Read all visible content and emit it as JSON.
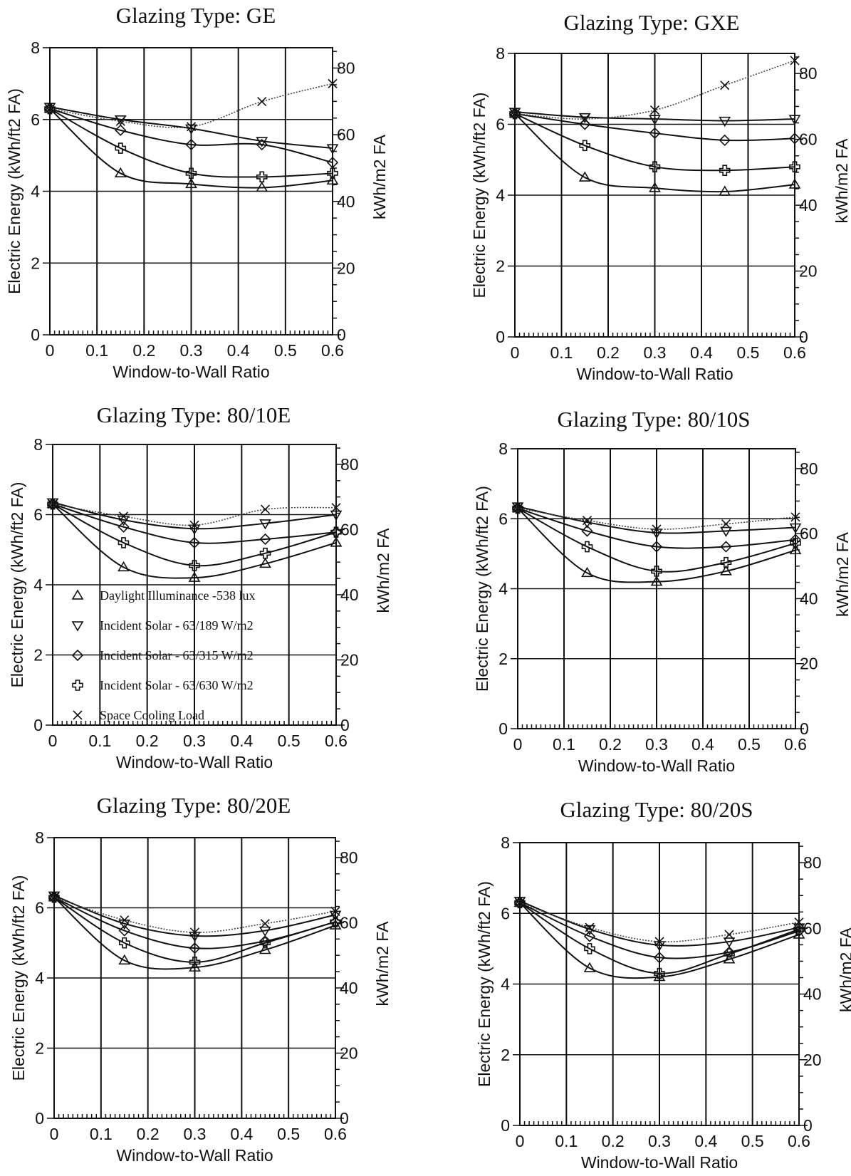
{
  "chart_data": [
    {
      "type": "line",
      "title": "Glazing Type:  GE",
      "xlabel": "Window-to-Wall Ratio",
      "ylabel": "Electric Energy (kWh/ft2 FA)",
      "y2label": "kWh/m2 FA",
      "xlim": [
        0,
        0.6
      ],
      "ylim": [
        0,
        8
      ],
      "y2lim": [
        0,
        86.1
      ],
      "x_ticks": [
        "0",
        "0.1",
        "0.2",
        "0.3",
        "0.4",
        "0.5",
        "0.6"
      ],
      "y_ticks": [
        "0",
        "2",
        "4",
        "6",
        "8"
      ],
      "y2_ticks": [
        "0",
        "20",
        "40",
        "60",
        "80"
      ],
      "grid": true,
      "x": [
        0,
        0.15,
        0.3,
        0.45,
        0.6
      ],
      "series": [
        {
          "name": "Daylight Illuminance -538 lux",
          "marker": "triangle-up",
          "values": [
            6.3,
            4.5,
            4.2,
            4.1,
            4.3
          ]
        },
        {
          "name": "Incident  Solar - 63/189 W/m2",
          "marker": "triangle-down",
          "values": [
            6.35,
            6.0,
            5.75,
            5.4,
            5.2
          ]
        },
        {
          "name": "Incident  Solar -  63/315 W/m2",
          "marker": "diamond",
          "values": [
            6.3,
            5.7,
            5.3,
            5.3,
            4.8
          ]
        },
        {
          "name": "Incident  Solar - 63/630 W/m2",
          "marker": "cross",
          "values": [
            6.3,
            5.2,
            4.5,
            4.4,
            4.5
          ]
        },
        {
          "name": "Space Cooling Load",
          "marker": "x",
          "values": [
            6.3,
            5.95,
            5.8,
            6.5,
            7.0
          ]
        }
      ]
    },
    {
      "type": "line",
      "title": "Glazing Type:  GXE",
      "xlabel": "Window-to-Wall Ratio",
      "ylabel": "Electric Energy (kWh/ft2 FA)",
      "y2label": "kWh/m2 FA",
      "xlim": [
        0,
        0.6
      ],
      "ylim": [
        0,
        8
      ],
      "y2lim": [
        0,
        86.1
      ],
      "x_ticks": [
        "0",
        "0.1",
        "0.2",
        "0.3",
        "0.4",
        "0.5",
        "0.6"
      ],
      "y_ticks": [
        "0",
        "2",
        "4",
        "6",
        "8"
      ],
      "y2_ticks": [
        "0",
        "20",
        "40",
        "60",
        "80"
      ],
      "grid": true,
      "x": [
        0,
        0.15,
        0.3,
        0.45,
        0.6
      ],
      "series": [
        {
          "name": "Daylight Illuminance -538 lux",
          "marker": "triangle-up",
          "values": [
            6.3,
            4.5,
            4.2,
            4.1,
            4.3
          ]
        },
        {
          "name": "Incident  Solar - 63/189 W/m2",
          "marker": "triangle-down",
          "values": [
            6.35,
            6.2,
            6.15,
            6.1,
            6.15
          ]
        },
        {
          "name": "Incident  Solar -  63/315 W/m2",
          "marker": "diamond",
          "values": [
            6.3,
            6.0,
            5.75,
            5.55,
            5.6
          ]
        },
        {
          "name": "Incident  Solar - 63/630 W/m2",
          "marker": "cross",
          "values": [
            6.3,
            5.4,
            4.8,
            4.7,
            4.8
          ]
        },
        {
          "name": "Space Cooling Load",
          "marker": "x",
          "values": [
            6.3,
            6.15,
            6.4,
            7.1,
            7.8
          ]
        }
      ]
    },
    {
      "type": "line",
      "title": "Glazing Type:  80/10E",
      "xlabel": "Window-to-Wall Ratio",
      "ylabel": "Electric Energy (kWh/ft2 FA)",
      "y2label": "kWh/m2 FA",
      "xlim": [
        0,
        0.6
      ],
      "ylim": [
        0,
        8
      ],
      "y2lim": [
        0,
        86.1
      ],
      "x_ticks": [
        "0",
        "0.1",
        "0.2",
        "0.3",
        "0.4",
        "0.5",
        "0.6"
      ],
      "y_ticks": [
        "0",
        "2",
        "4",
        "6",
        "8"
      ],
      "y2_ticks": [
        "0",
        "20",
        "40",
        "60",
        "80"
      ],
      "grid": true,
      "legend_position": "lower-left",
      "x": [
        0,
        0.15,
        0.3,
        0.45,
        0.6
      ],
      "series": [
        {
          "name": "Daylight Illuminance -538 lux",
          "marker": "triangle-up",
          "values": [
            6.3,
            4.5,
            4.2,
            4.6,
            5.2
          ]
        },
        {
          "name": "Incident  Solar - 63/189 W/m2",
          "marker": "triangle-down",
          "values": [
            6.35,
            5.85,
            5.6,
            5.75,
            6.0
          ]
        },
        {
          "name": "Incident  Solar -  63/315 W/m2",
          "marker": "diamond",
          "values": [
            6.3,
            5.65,
            5.2,
            5.3,
            5.5
          ]
        },
        {
          "name": "Incident  Solar - 63/630 W/m2",
          "marker": "cross",
          "values": [
            6.3,
            5.2,
            4.55,
            4.9,
            5.5
          ]
        },
        {
          "name": "Space Cooling Load",
          "marker": "x",
          "values": [
            6.3,
            5.95,
            5.7,
            6.15,
            6.2
          ]
        }
      ]
    },
    {
      "type": "line",
      "title": "Glazing Type:  80/10S",
      "xlabel": "Window-to-Wall Ratio",
      "ylabel": "Electric Energy (kWh/ft2 FA)",
      "y2label": "kWh/m2 FA",
      "xlim": [
        0,
        0.6
      ],
      "ylim": [
        0,
        8
      ],
      "y2lim": [
        0,
        86.1
      ],
      "x_ticks": [
        "0",
        "0.1",
        "0.2",
        "0.3",
        "0.4",
        "0.5",
        "0.6"
      ],
      "y_ticks": [
        "0",
        "2",
        "4",
        "6",
        "8"
      ],
      "y2_ticks": [
        "0",
        "20",
        "40",
        "60",
        "80"
      ],
      "grid": true,
      "x": [
        0,
        0.15,
        0.3,
        0.45,
        0.6
      ],
      "series": [
        {
          "name": "Daylight Illuminance -538 lux",
          "marker": "triangle-up",
          "values": [
            6.3,
            4.45,
            4.2,
            4.5,
            5.1
          ]
        },
        {
          "name": "Incident  Solar - 63/189 W/m2",
          "marker": "triangle-down",
          "values": [
            6.35,
            5.9,
            5.6,
            5.65,
            5.75
          ]
        },
        {
          "name": "Incident  Solar -  63/315 W/m2",
          "marker": "diamond",
          "values": [
            6.3,
            5.65,
            5.2,
            5.2,
            5.4
          ]
        },
        {
          "name": "Incident  Solar - 63/630 W/m2",
          "marker": "cross",
          "values": [
            6.3,
            5.2,
            4.5,
            4.75,
            5.3
          ]
        },
        {
          "name": "Space Cooling Load",
          "marker": "x",
          "values": [
            6.3,
            5.95,
            5.7,
            5.85,
            6.05
          ]
        }
      ]
    },
    {
      "type": "line",
      "title": "Glazing Type:  80/20E",
      "xlabel": "Window-to-Wall Ratio",
      "ylabel": "Electric Energy (kWh/ft2 FA)",
      "y2label": "kWh/m2 FA",
      "xlim": [
        0,
        0.6
      ],
      "ylim": [
        0,
        8
      ],
      "y2lim": [
        0,
        86.1
      ],
      "x_ticks": [
        "0",
        "0.1",
        "0.2",
        "0.3",
        "0.4",
        "0.5",
        "0.6"
      ],
      "y_ticks": [
        "0",
        "2",
        "4",
        "6",
        "8"
      ],
      "y2_ticks": [
        "0",
        "20",
        "40",
        "60",
        "80"
      ],
      "grid": true,
      "x": [
        0,
        0.15,
        0.3,
        0.45,
        0.6
      ],
      "series": [
        {
          "name": "Daylight Illuminance -538 lux",
          "marker": "triangle-up",
          "values": [
            6.3,
            4.5,
            4.3,
            4.8,
            5.5
          ]
        },
        {
          "name": "Incident  Solar - 63/189 W/m2",
          "marker": "triangle-down",
          "values": [
            6.35,
            5.55,
            5.2,
            5.35,
            5.8
          ]
        },
        {
          "name": "Incident  Solar -  63/315 W/m2",
          "marker": "diamond",
          "values": [
            6.3,
            5.35,
            4.85,
            5.05,
            5.6
          ]
        },
        {
          "name": "Incident  Solar - 63/630 W/m2",
          "marker": "cross",
          "values": [
            6.3,
            5.0,
            4.45,
            5.0,
            5.6
          ]
        },
        {
          "name": "Space Cooling Load",
          "marker": "x",
          "values": [
            6.3,
            5.65,
            5.3,
            5.55,
            5.9
          ]
        }
      ]
    },
    {
      "type": "line",
      "title": "Glazing Type:  80/20S",
      "xlabel": "Window-to-Wall Ratio",
      "ylabel": "Electric Energy (kWh/ft2 FA)",
      "y2label": "kWh/m2 FA",
      "xlim": [
        0,
        0.6
      ],
      "ylim": [
        0,
        8
      ],
      "y2lim": [
        0,
        86.1
      ],
      "x_ticks": [
        "0",
        "0.1",
        "0.2",
        "0.3",
        "0.4",
        "0.5",
        "0.6"
      ],
      "y_ticks": [
        "0",
        "2",
        "4",
        "6",
        "8"
      ],
      "y2_ticks": [
        "0",
        "20",
        "40",
        "60",
        "80"
      ],
      "grid": true,
      "x": [
        0,
        0.15,
        0.3,
        0.45,
        0.6
      ],
      "series": [
        {
          "name": "Daylight Illuminance -538 lux",
          "marker": "triangle-up",
          "values": [
            6.3,
            4.45,
            4.2,
            4.7,
            5.4
          ]
        },
        {
          "name": "Incident  Solar - 63/189 W/m2",
          "marker": "triangle-down",
          "values": [
            6.35,
            5.55,
            5.1,
            5.2,
            5.6
          ]
        },
        {
          "name": "Incident  Solar -  63/315 W/m2",
          "marker": "diamond",
          "values": [
            6.3,
            5.35,
            4.75,
            4.9,
            5.5
          ]
        },
        {
          "name": "Incident  Solar - 63/630 W/m2",
          "marker": "cross",
          "values": [
            6.3,
            5.0,
            4.3,
            4.85,
            5.55
          ]
        },
        {
          "name": "Space Cooling Load",
          "marker": "x",
          "values": [
            6.3,
            5.6,
            5.2,
            5.4,
            5.75
          ]
        }
      ]
    }
  ]
}
